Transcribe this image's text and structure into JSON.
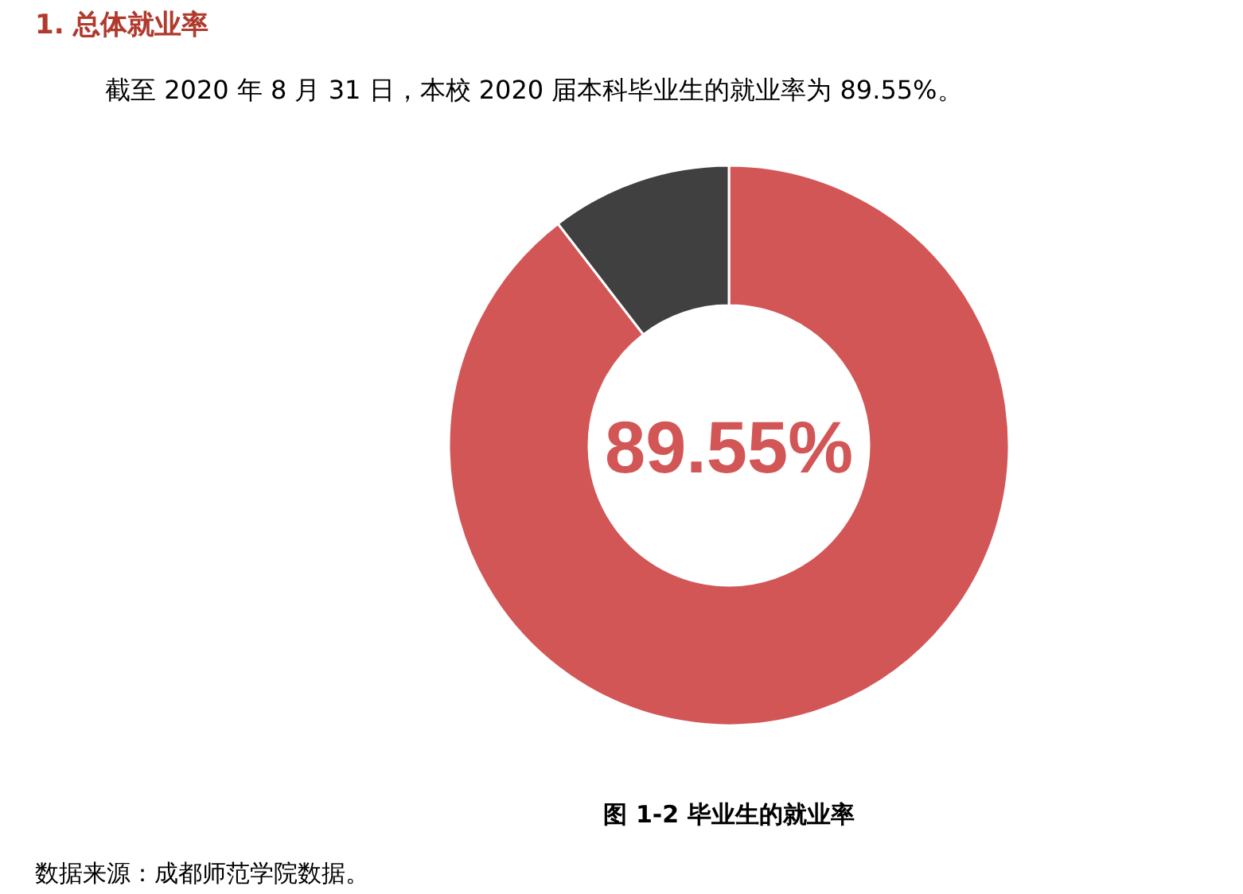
{
  "chart_data": {
    "type": "donut",
    "title": "1.  总体就业率",
    "subtitle": "截至 2020 年 8 月 31 日，本校 2020 届本科毕业生的就业率为 89.55%。",
    "categories": [
      null,
      null
    ],
    "values": [
      89.55,
      10.45
    ],
    "colors": [
      "#d35656",
      "#404040"
    ],
    "value_labels": [
      "89.55%",
      null
    ],
    "annotations": [
      "图 1-2 毕业生的就业率",
      "数据来源：成都师范学院数据。"
    ]
  }
}
